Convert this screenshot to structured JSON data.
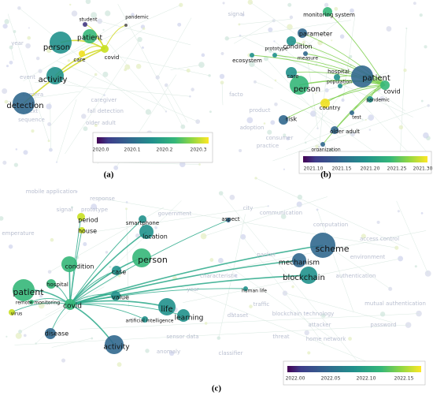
{
  "panels": [
    {
      "caption": "(a)",
      "nodes": [
        "student",
        "pandemic",
        "person",
        "patient",
        "covid",
        "care",
        "activity",
        "detection"
      ],
      "faded": [
        "year",
        "event",
        "camera",
        "caregiver",
        "fall detection",
        "older adult",
        "context",
        "sequence"
      ],
      "colorbar": {
        "ticks": [
          "2020.0",
          "2020.1",
          "2020.2",
          "2020.3"
        ]
      }
    },
    {
      "caption": "(b)",
      "nodes": [
        "monitoring system",
        "prototype",
        "parameter",
        "condition",
        "ecosystem",
        "measure",
        "care",
        "hospital",
        "patient",
        "covid",
        "person",
        "population",
        "pandemic",
        "country",
        "risk",
        "test",
        "older adult",
        "organization"
      ],
      "faded": [
        "signal",
        "consumer",
        "practice",
        "adoption",
        "product",
        "facto"
      ],
      "colorbar": {
        "ticks": [
          "2021.10",
          "2021.15",
          "2021.20",
          "2021.25",
          "2021.30"
        ]
      }
    },
    {
      "caption": "(c)",
      "nodes": [
        "smartphone",
        "aspect",
        "period",
        "house",
        "location",
        "person",
        "condition",
        "case",
        "scheme",
        "mechanism",
        "blockchain",
        "hospital",
        "patient",
        "remote monitoring",
        "covid",
        "value",
        "life",
        "learning",
        "human life",
        "virus",
        "disease",
        "artificial intelligence",
        "activity"
      ],
      "faded": [
        "mobile application",
        "response",
        "signal",
        "government",
        "city",
        "communication",
        "emperature",
        "packet",
        "computation",
        "access control",
        "environment",
        "authentication",
        "characteristic",
        "year",
        "traffic",
        "dataset",
        "blockchain technology",
        "mutual authentication",
        "threat",
        "attacker",
        "password",
        "home network",
        "sensor data",
        "classifier",
        "anomaly",
        "prototype"
      ],
      "colorbar": {
        "ticks": [
          "2022.00",
          "2022.05",
          "2022.10",
          "2022.15"
        ]
      }
    }
  ]
}
